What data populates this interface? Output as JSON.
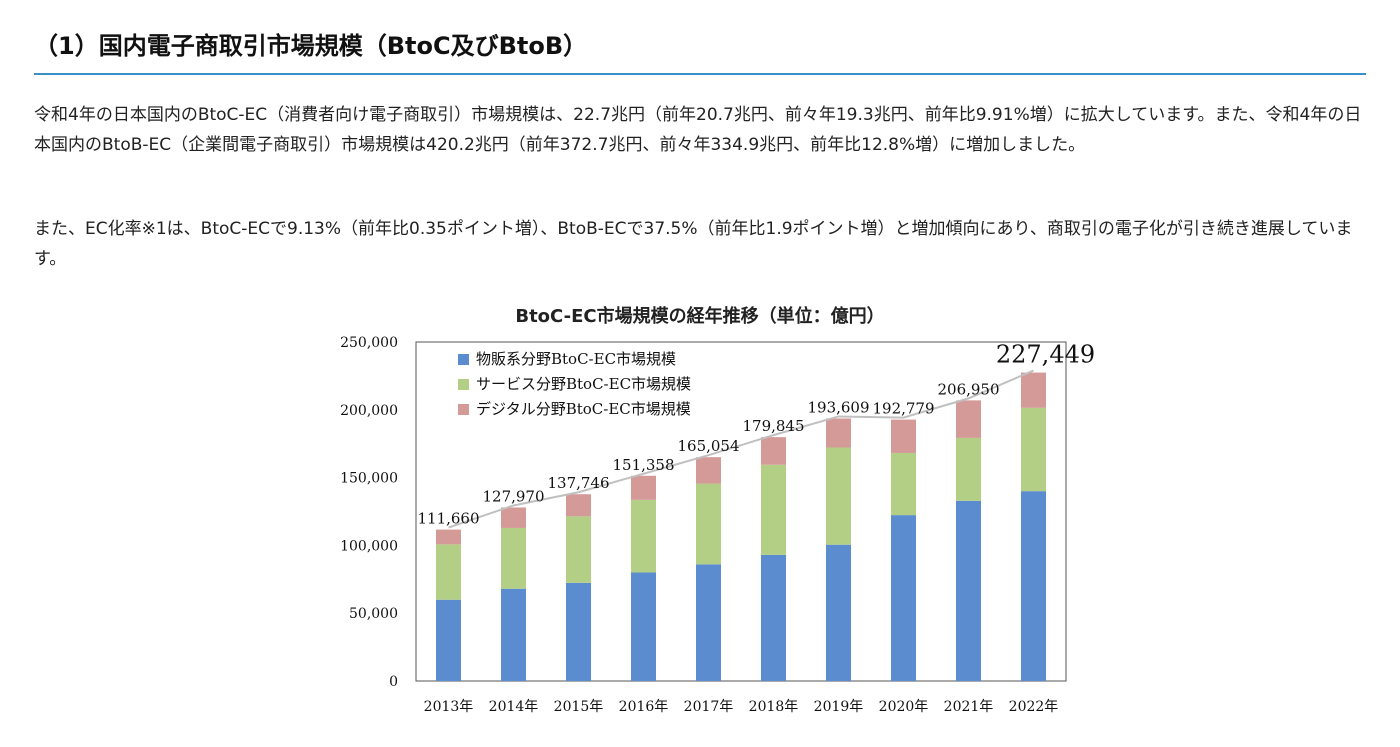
{
  "heading": "（1）国内電子商取引市場規模（BtoC及びBtoB）",
  "paragraphs": [
    "令和4年の日本国内のBtoC-EC（消費者向け電子商取引）市場規模は、22.7兆円（前年20.7兆円、前々年19.3兆円、前年比9.91%増）に拡大しています。また、令和4年の日本国内のBtoB-EC（企業間電子商取引）市場規模は420.2兆円（前年372.7兆円、前々年334.9兆円、前年比12.8%増）に増加しました。",
    "また、EC化率※1は、BtoC-ECで9.13%（前年比0.35ポイント増）、BtoB-ECで37.5%（前年比1.9ポイント増）と増加傾向にあり、商取引の電子化が引き続き進展しています。"
  ],
  "chart_data": {
    "type": "bar",
    "stacked": true,
    "title": "BtoC-EC市場規模の経年推移（単位：億円）",
    "categories": [
      "2013年",
      "2014年",
      "2015年",
      "2016年",
      "2017年",
      "2018年",
      "2019年",
      "2020年",
      "2021年",
      "2022年"
    ],
    "series": [
      {
        "name": "物販系分野BtoC-EC市場規模",
        "color": "#5b8ccf",
        "values": [
          59931,
          68043,
          72398,
          80043,
          86008,
          92992,
          100515,
          122333,
          132865,
          139997
        ]
      },
      {
        "name": "サービス分野BtoC-EC市場規模",
        "color": "#b3cf86",
        "values": [
          40840,
          44816,
          49014,
          53532,
          59568,
          66471,
          71672,
          45832,
          46424,
          61477
        ]
      },
      {
        "name": "デジタル分野BtoC-EC市場規模",
        "color": "#d49a98",
        "values": [
          10889,
          15111,
          16334,
          17783,
          19478,
          20382,
          21422,
          24614,
          27661,
          25974
        ]
      }
    ],
    "totals": [
      111660,
      127970,
      137746,
      151358,
      165054,
      179845,
      193609,
      192779,
      206950,
      227449
    ],
    "total_labels": [
      "111,660",
      "127,970",
      "137,746",
      "151,358",
      "165,054",
      "179,845",
      "193,609",
      "192,779",
      "206,950",
      "227,449"
    ],
    "ylim": [
      0,
      250000
    ],
    "yticks": [
      0,
      50000,
      100000,
      150000,
      200000,
      250000
    ],
    "ytick_labels": [
      "0",
      "50,000",
      "100,000",
      "150,000",
      "200,000",
      "250,000"
    ],
    "grid": false,
    "legend_position": "top-left",
    "colors": {
      "line": "#c0c0c0",
      "frame": "#555555"
    }
  }
}
